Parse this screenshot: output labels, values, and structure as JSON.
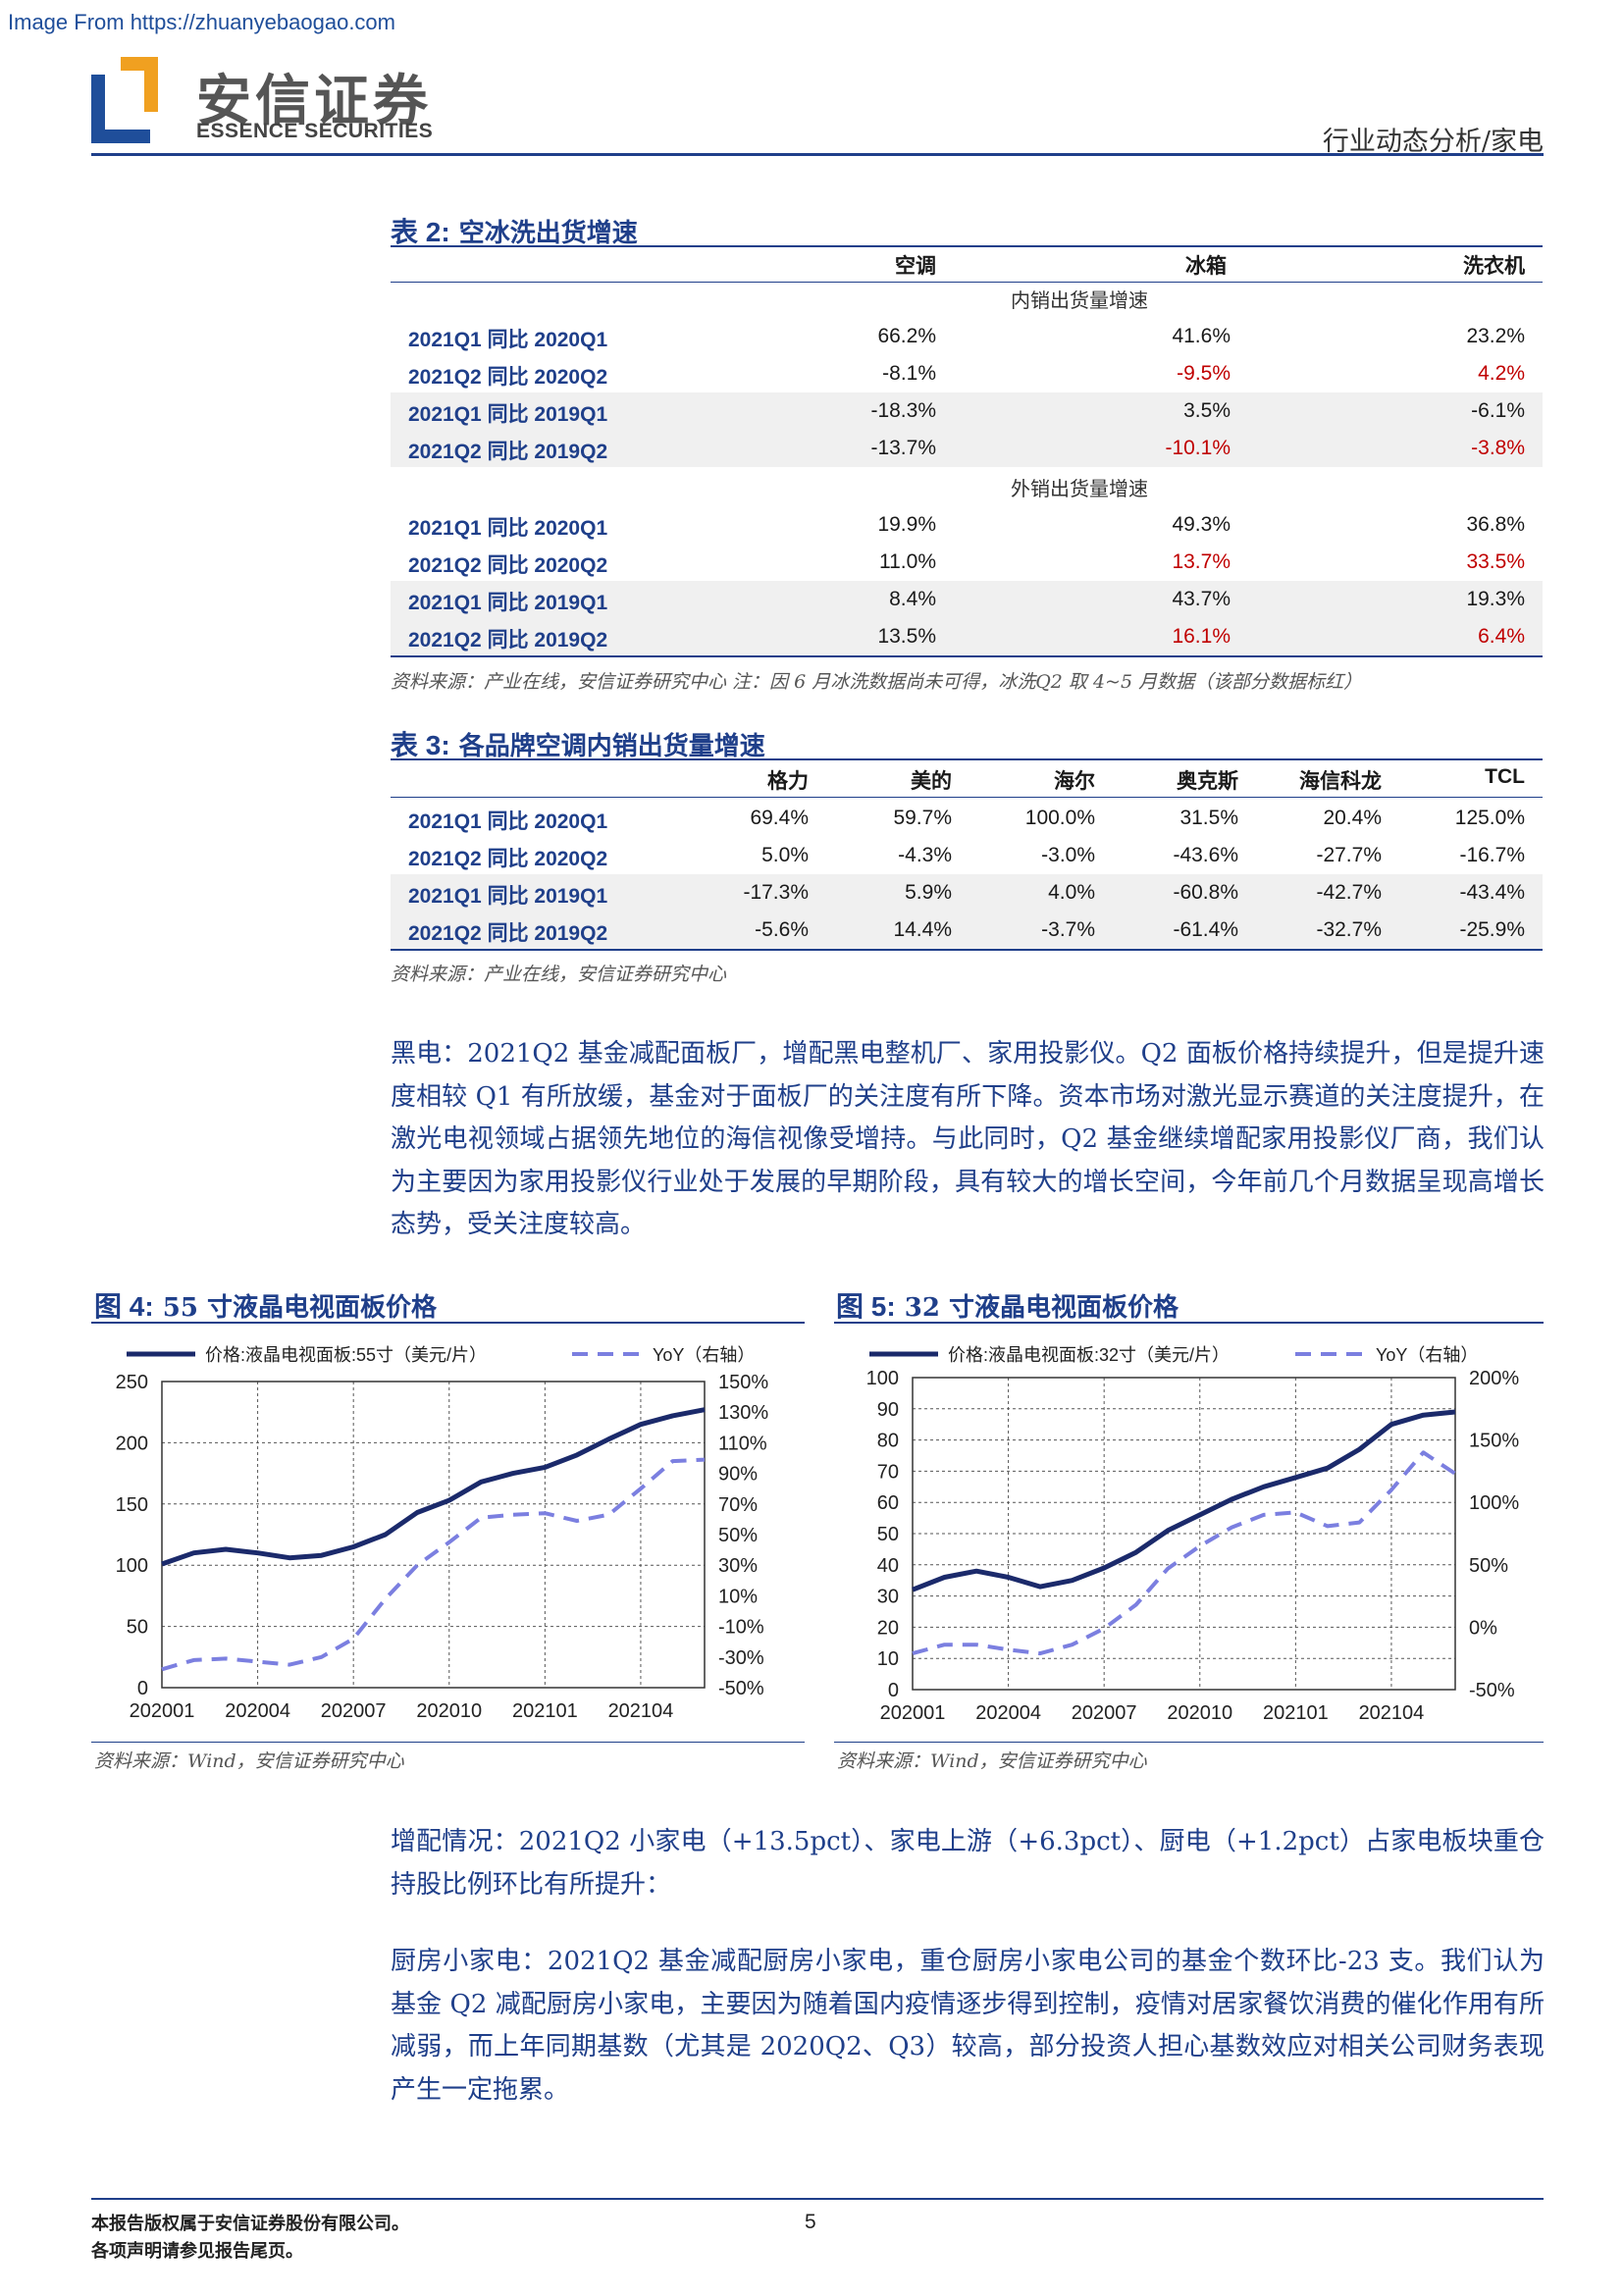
{
  "watermark": "Image From https://zhuanyebaogao.com",
  "header": {
    "logo_cn": "安信证券",
    "logo_en": "ESSENCE SECURITIES",
    "section": "行业动态分析/家电"
  },
  "table2": {
    "label": "表 2:",
    "title": "空冰洗出货增速",
    "columns": [
      "空调",
      "冰箱",
      "洗衣机"
    ],
    "sections": [
      {
        "title": "内销出货量增速",
        "rows": [
          {
            "label": "2021Q1 同比 2020Q1",
            "values": [
              "66.2%",
              "41.6%",
              "23.2%"
            ]
          },
          {
            "label": "2021Q2 同比 2020Q2",
            "values": [
              "-8.1%",
              "-9.5%",
              "4.2%"
            ]
          },
          {
            "label": "2021Q1 同比 2019Q1",
            "values": [
              "-18.3%",
              "3.5%",
              "-6.1%"
            ]
          },
          {
            "label": "2021Q2 同比 2019Q2",
            "values": [
              "-13.7%",
              "-10.1%",
              "-3.8%"
            ]
          }
        ]
      },
      {
        "title": "外销出货量增速",
        "rows": [
          {
            "label": "2021Q1 同比 2020Q1",
            "values": [
              "19.9%",
              "49.3%",
              "36.8%"
            ]
          },
          {
            "label": "2021Q2 同比 2020Q2",
            "values": [
              "11.0%",
              "13.7%",
              "33.5%"
            ]
          },
          {
            "label": "2021Q1 同比 2019Q1",
            "values": [
              "8.4%",
              "43.7%",
              "19.3%"
            ]
          },
          {
            "label": "2021Q2 同比 2019Q2",
            "values": [
              "13.5%",
              "16.1%",
              "6.4%"
            ]
          }
        ]
      }
    ],
    "source": "资料来源：产业在线，安信证券研究中心 注：因 6 月冰洗数据尚未可得，冰洗Q2 取 4~5 月数据（该部分数据标红）",
    "highlight_color": "#c00000"
  },
  "table3": {
    "label": "表 3:",
    "title": "各品牌空调内销出货量增速",
    "columns": [
      "格力",
      "美的",
      "海尔",
      "奥克斯",
      "海信科龙",
      "TCL"
    ],
    "rows": [
      {
        "label": "2021Q1 同比 2020Q1",
        "values": [
          "69.4%",
          "59.7%",
          "100.0%",
          "31.5%",
          "20.4%",
          "125.0%"
        ]
      },
      {
        "label": "2021Q2 同比 2020Q2",
        "values": [
          "5.0%",
          "-4.3%",
          "-3.0%",
          "-43.6%",
          "-27.7%",
          "-16.7%"
        ]
      },
      {
        "label": "2021Q1 同比 2019Q1",
        "values": [
          "-17.3%",
          "5.9%",
          "4.0%",
          "-60.8%",
          "-42.7%",
          "-43.4%"
        ]
      },
      {
        "label": "2021Q2 同比 2019Q2",
        "values": [
          "-5.6%",
          "14.4%",
          "-3.7%",
          "-61.4%",
          "-32.7%",
          "-25.9%"
        ]
      }
    ],
    "source": "资料来源：产业在线，安信证券研究中心"
  },
  "paragraphs": {
    "black_appliance": "黑电：2021Q2 基金减配面板厂，增配黑电整机厂、家用投影仪。Q2 面板价格持续提升，但是提升速度相较 Q1 有所放缓，基金对于面板厂的关注度有所下降。资本市场对激光显示赛道的关注度提升，在激光电视领域占据领先地位的海信视像受增持。与此同时，Q2 基金继续增配家用投影仪厂商，我们认为主要因为家用投影仪行业处于发展的早期阶段，具有较大的增长空间，今年前几个月数据呈现高增长态势，受关注度较高。",
    "overweight": "增配情况：2021Q2 小家电（+13.5pct）、家电上游（+6.3pct）、厨电（+1.2pct）占家电板块重仓持股比例环比有所提升：",
    "kitchen": "厨房小家电：2021Q2 基金减配厨房小家电，重仓厨房小家电公司的基金个数环比-23 支。我们认为基金 Q2 减配厨房小家电，主要因为随着国内疫情逐步得到控制，疫情对居家餐饮消费的催化作用有所减弱，而上年同期基数（尤其是 2020Q2、Q3）较高，部分投资人担心基数效应对相关公司财务表现产生一定拖累。"
  },
  "figures": [
    {
      "label": "图 4:",
      "title": "55 寸液晶电视面板价格",
      "source": "资料来源：Wind，安信证券研究中心"
    },
    {
      "label": "图 5:",
      "title": "32 寸液晶电视面板价格",
      "source": "资料来源：Wind，安信证券研究中心"
    }
  ],
  "chart_data": [
    {
      "type": "line",
      "x": [
        "202001",
        "202002",
        "202003",
        "202004",
        "202005",
        "202006",
        "202007",
        "202008",
        "202009",
        "202010",
        "202011",
        "202012",
        "202101",
        "202102",
        "202103",
        "202104",
        "202105",
        "202106"
      ],
      "xticks": [
        "202001",
        "202004",
        "202007",
        "202010",
        "202101",
        "202104"
      ],
      "series": [
        {
          "name": "价格:液晶电视面板:55寸（美元/片）",
          "axis": "left",
          "color": "#1b2a6b",
          "style": "solid",
          "values": [
            101,
            110,
            113,
            110,
            106,
            108,
            115,
            125,
            143,
            153,
            168,
            175,
            180,
            190,
            203,
            215,
            222,
            227
          ]
        },
        {
          "name": "YoY（右轴）",
          "axis": "right",
          "color": "#7b7fe0",
          "style": "dashed",
          "values": [
            -38,
            -32,
            -31,
            -33,
            -35,
            -30,
            -18,
            8,
            30,
            45,
            61,
            63,
            64,
            59,
            63,
            80,
            98,
            99
          ]
        }
      ],
      "ylim": [
        0,
        250
      ],
      "yticks": [
        0,
        50,
        100,
        150,
        200,
        250
      ],
      "y2lim": [
        -50,
        150
      ],
      "y2ticks": [
        "-50%",
        "-30%",
        "-10%",
        "10%",
        "30%",
        "50%",
        "70%",
        "90%",
        "110%",
        "130%",
        "150%"
      ],
      "grid": true,
      "legend": "top"
    },
    {
      "type": "line",
      "x": [
        "202001",
        "202002",
        "202003",
        "202004",
        "202005",
        "202006",
        "202007",
        "202008",
        "202009",
        "202010",
        "202011",
        "202012",
        "202101",
        "202102",
        "202103",
        "202104",
        "202105",
        "202106"
      ],
      "xticks": [
        "202001",
        "202004",
        "202007",
        "202010",
        "202101",
        "202104"
      ],
      "series": [
        {
          "name": "价格:液晶电视面板:32寸（美元/片）",
          "axis": "left",
          "color": "#1b2a6b",
          "style": "solid",
          "values": [
            32,
            36,
            38,
            36,
            33,
            35,
            39,
            44,
            51,
            56,
            61,
            65,
            68,
            71,
            77,
            85,
            88,
            89
          ]
        },
        {
          "name": "YoY（右轴）",
          "axis": "right",
          "color": "#7b7fe0",
          "style": "dashed",
          "values": [
            -21,
            -14,
            -14,
            -18,
            -21,
            -14,
            -1,
            18,
            47,
            65,
            80,
            90,
            92,
            81,
            84,
            110,
            140,
            123
          ]
        }
      ],
      "ylim": [
        0,
        100
      ],
      "yticks": [
        0,
        10,
        20,
        30,
        40,
        50,
        60,
        70,
        80,
        90,
        100
      ],
      "y2lim": [
        -50,
        200
      ],
      "y2ticks": [
        "-50%",
        "0%",
        "50%",
        "100%",
        "150%",
        "200%"
      ],
      "grid": true,
      "legend": "top"
    }
  ],
  "footer": {
    "copyright": "本报告版权属于安信证券股份有限公司。",
    "disclaimer": "各项声明请参见报告尾页。",
    "page_number": "5"
  }
}
